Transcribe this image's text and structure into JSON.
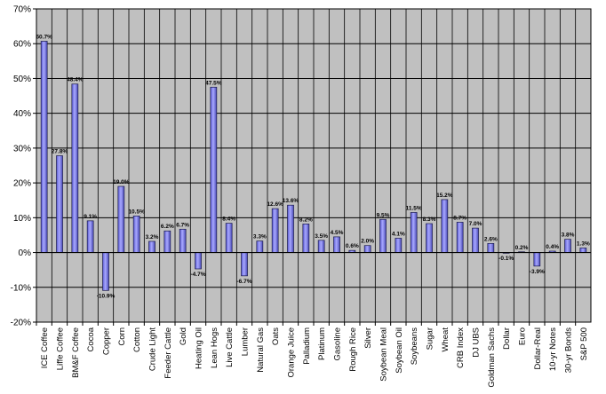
{
  "chart_data": {
    "type": "bar",
    "title": "",
    "xlabel": "",
    "ylabel": "",
    "ylim": [
      -20,
      70
    ],
    "yticks": [
      -20,
      -10,
      0,
      10,
      20,
      30,
      40,
      50,
      60,
      70
    ],
    "ytick_labels": [
      "-20%",
      "-10%",
      "0%",
      "10%",
      "20%",
      "30%",
      "40%",
      "50%",
      "60%",
      "70%"
    ],
    "grid": true,
    "legend": "none",
    "categories": [
      "ICE Coffee",
      "Liffe Coffee",
      "BM&F Coffee",
      "Cocoa",
      "Copper",
      "Corn",
      "Cotton",
      "Crude Light",
      "Feeder Cattle",
      "Gold",
      "Heating Oil",
      "Lean Hogs",
      "Live Cattle",
      "Lumber",
      "Natural Gas",
      "Oats",
      "Orange Juice",
      "Palladium",
      "Platinum",
      "Gasoline",
      "Rough Rice",
      "Silver",
      "Soybean Meal",
      "Soybean Oil",
      "Soybeans",
      "Sugar",
      "Wheat",
      "CRB Index",
      "DJ UBS",
      "Goldman Sachs",
      "Dollar",
      "Euro",
      "Dollar-Real",
      "10-yr Notes",
      "30-yr Bonds",
      "S&P 500"
    ],
    "values": [
      60.7,
      27.8,
      48.4,
      9.1,
      -10.9,
      19.0,
      10.5,
      3.2,
      6.2,
      6.7,
      -4.7,
      47.5,
      8.4,
      -6.7,
      3.3,
      12.6,
      13.6,
      8.2,
      3.5,
      4.5,
      0.6,
      2.0,
      9.5,
      4.1,
      11.5,
      8.3,
      15.2,
      8.7,
      7.0,
      2.6,
      -0.1,
      0.2,
      -3.9,
      0.4,
      3.8,
      1.3
    ],
    "value_labels": [
      "60.7%",
      "27.8%",
      "48.4%",
      "9.1%",
      "-10.9%",
      "19.0%",
      "10.5%",
      "3.2%",
      "6.2%",
      "6.7%",
      "-4.7%",
      "47.5%",
      "8.4%",
      "-6.7%",
      "3.3%",
      "12.6%",
      "13.6%",
      "8.2%",
      "3.5%",
      "4.5%",
      "0.6%",
      "2.0%",
      "9.5%",
      "4.1%",
      "11.5%",
      "8.3%",
      "15.2%",
      "8.7%",
      "7.0%",
      "2.6%",
      "-0.1%",
      "0.2%",
      "-3.9%",
      "0.4%",
      "3.8%",
      "1.3%"
    ],
    "colors": {
      "plot_background": "#c0c0c0",
      "bar_fill": "#8080e8",
      "bar_edge": "#1a1a4d",
      "grid": "#000000",
      "axis": "#000000"
    }
  }
}
